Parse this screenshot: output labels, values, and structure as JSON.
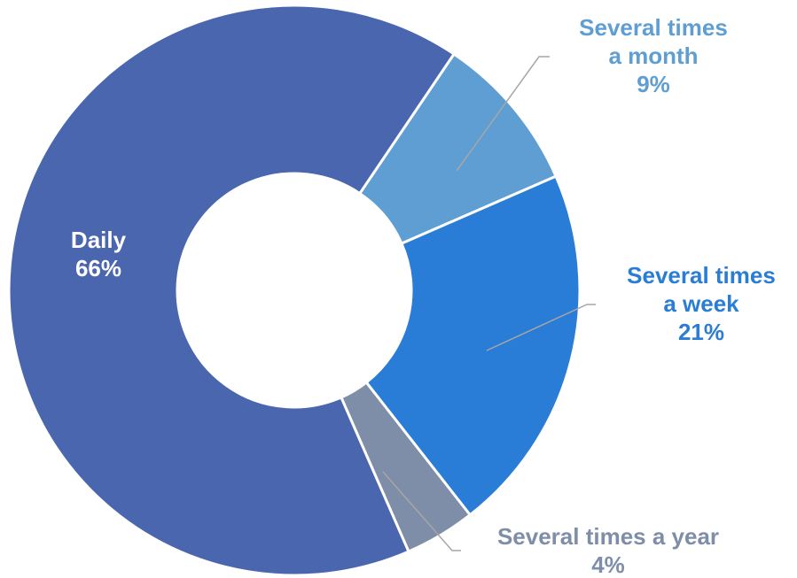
{
  "chart_data": {
    "type": "pie",
    "variant": "donut",
    "slices": [
      {
        "label_lines": [
          "Several times",
          "a month"
        ],
        "percent_label": "9%",
        "value": 9,
        "color": "#5f9ed3",
        "label_color": "#5f9ed3"
      },
      {
        "label_lines": [
          "Several times",
          "a week"
        ],
        "percent_label": "21%",
        "value": 21,
        "color": "#2a7dd6",
        "label_color": "#2a7dd6"
      },
      {
        "label_lines": [
          "Several times a year"
        ],
        "percent_label": "4%",
        "value": 4,
        "color": "#7f8ea8",
        "label_color": "#7f8ea8"
      },
      {
        "label_lines": [
          "Daily"
        ],
        "percent_label": "66%",
        "value": 66,
        "color": "#4a66ae",
        "label_color": "#ffffff"
      }
    ],
    "start_angle_deg": 34,
    "direction": "clockwise",
    "leader_color": "#a6a6a6",
    "separator_color": "#ffffff",
    "background_color": "#ffffff"
  }
}
